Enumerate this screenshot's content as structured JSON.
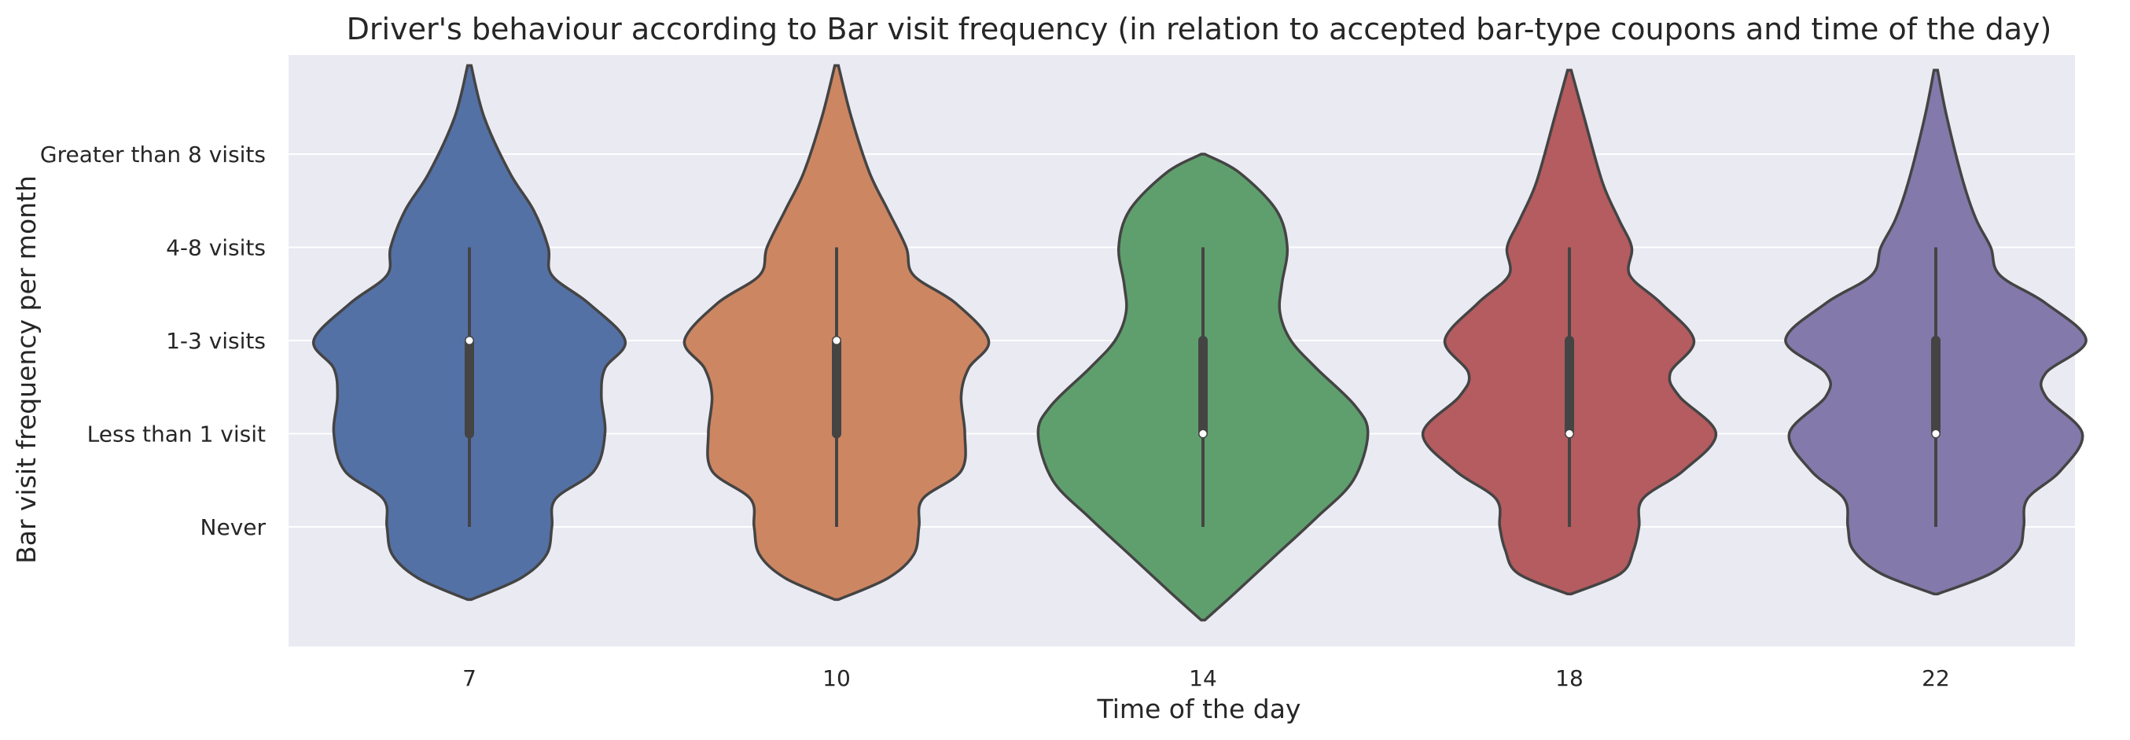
{
  "chart_data": {
    "type": "violin",
    "title": "Driver's behaviour according to Bar visit frequency (in relation to accepted bar-type coupons and time of the day)",
    "xlabel": "Time of the day",
    "ylabel": "Bar visit frequency per month",
    "categories": [
      "7",
      "10",
      "14",
      "18",
      "22"
    ],
    "y_categories": [
      "Never",
      "Less than 1 visit",
      "1-3 visits",
      "4-8 visits",
      "Greater than 8 visits"
    ],
    "ylim": [
      -0.8,
      5.6
    ],
    "grid": true,
    "colors": [
      "#5471a6",
      "#cd8662",
      "#5f9f6e",
      "#b45c60",
      "#8479ab"
    ],
    "series": [
      {
        "category": "7",
        "whisker": [
          0,
          3
        ],
        "q1": 1,
        "median": 2,
        "q3": 2,
        "density_y": [
          -0.78,
          -0.55,
          -0.3,
          0,
          0.3,
          0.6,
          1,
          1.4,
          1.7,
          2,
          2.4,
          2.7,
          3,
          3.4,
          3.8,
          4.4,
          4.95
        ],
        "density_w": [
          0.01,
          0.28,
          0.42,
          0.45,
          0.47,
          0.68,
          0.74,
          0.72,
          0.74,
          0.85,
          0.65,
          0.45,
          0.43,
          0.35,
          0.22,
          0.08,
          0.01
        ]
      },
      {
        "category": "10",
        "whisker": [
          0,
          3
        ],
        "q1": 1,
        "median": 2,
        "q3": 2,
        "density_y": [
          -0.78,
          -0.55,
          -0.3,
          0,
          0.3,
          0.6,
          1,
          1.4,
          1.7,
          2,
          2.4,
          2.7,
          3,
          3.4,
          3.8,
          4.4,
          4.95
        ],
        "density_w": [
          0.01,
          0.28,
          0.42,
          0.45,
          0.47,
          0.68,
          0.7,
          0.68,
          0.72,
          0.83,
          0.65,
          0.42,
          0.38,
          0.28,
          0.18,
          0.08,
          0.01
        ]
      },
      {
        "category": "14",
        "whisker": [
          0,
          3
        ],
        "q1": 1,
        "median": 1,
        "q3": 2,
        "density_y": [
          -1.0,
          -0.7,
          -0.3,
          0.1,
          0.5,
          1,
          1.3,
          1.7,
          2,
          2.3,
          2.6,
          3,
          3.4,
          3.8,
          4
        ],
        "density_w": [
          0.01,
          0.18,
          0.4,
          0.62,
          0.82,
          0.9,
          0.83,
          0.62,
          0.48,
          0.42,
          0.43,
          0.46,
          0.4,
          0.2,
          0.01
        ]
      },
      {
        "category": "18",
        "whisker": [
          0,
          3
        ],
        "q1": 1,
        "median": 1,
        "q3": 2,
        "density_y": [
          -0.72,
          -0.5,
          -0.25,
          0,
          0.3,
          0.6,
          1,
          1.4,
          1.65,
          2,
          2.4,
          2.7,
          3,
          3.3,
          3.7,
          4.4,
          4.9
        ],
        "density_w": [
          0.01,
          0.28,
          0.35,
          0.38,
          0.4,
          0.62,
          0.8,
          0.6,
          0.55,
          0.68,
          0.5,
          0.33,
          0.34,
          0.27,
          0.18,
          0.08,
          0.01
        ]
      },
      {
        "category": "22",
        "whisker": [
          0,
          3
        ],
        "q1": 1,
        "median": 1,
        "q3": 2,
        "density_y": [
          -0.72,
          -0.5,
          -0.25,
          0,
          0.3,
          0.6,
          1,
          1.4,
          1.65,
          2,
          2.4,
          2.7,
          3,
          3.3,
          3.7,
          4.4,
          4.9
        ],
        "density_w": [
          0.01,
          0.3,
          0.45,
          0.48,
          0.5,
          0.68,
          0.8,
          0.6,
          0.6,
          0.82,
          0.6,
          0.35,
          0.3,
          0.22,
          0.15,
          0.06,
          0.01
        ]
      }
    ]
  }
}
